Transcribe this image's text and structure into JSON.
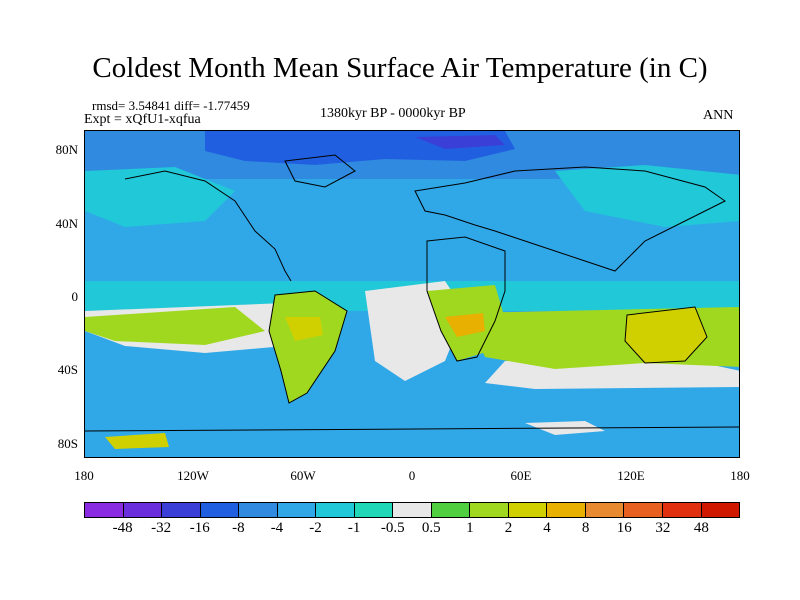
{
  "title": "Coldest Month Mean Surface Air Temperature (in C)",
  "stats_line": "rmsd= 3.54841 diff= -1.77459",
  "experiment": "Expt = xQfU1-xqfua",
  "period": "1380kyr BP - 0000kyr BP",
  "season": "ANN",
  "map": {
    "projection": "cylindrical-equidistant",
    "lon_range": [
      -180,
      180
    ],
    "lat_range": [
      -90,
      90
    ],
    "x_ticks": [
      "180",
      "120W",
      "60W",
      "0",
      "60E",
      "120E",
      "180"
    ],
    "y_ticks": [
      "80N",
      "40N",
      "0",
      "40S",
      "80S"
    ]
  },
  "legend": {
    "labels": [
      "-48",
      "-32",
      "-16",
      "-8",
      "-4",
      "-2",
      "-1",
      "-0.5",
      "0.5",
      "1",
      "2",
      "4",
      "8",
      "16",
      "32",
      "48"
    ],
    "colors": [
      "#8a2be2",
      "#6a2edc",
      "#3a3fd8",
      "#2060e0",
      "#2f8ae0",
      "#30a8e8",
      "#20c8d8",
      "#20d8b8",
      "#e8e8e8",
      "#50d040",
      "#a0d820",
      "#d0d000",
      "#e8b000",
      "#e88a30",
      "#e86020",
      "#e03010",
      "#d01800"
    ]
  }
}
